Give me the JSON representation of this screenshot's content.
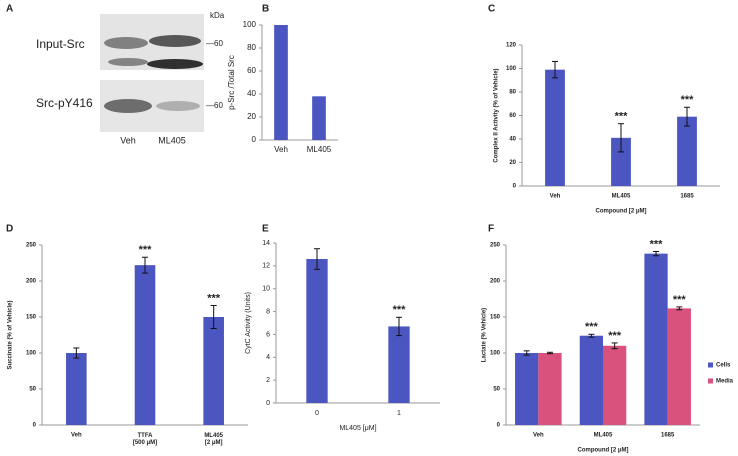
{
  "blot": {
    "panel": "A",
    "kda": "kDa",
    "rows": [
      {
        "name": "Input-Src",
        "marker": "—60"
      },
      {
        "name": "Src-pY416",
        "marker": "—60"
      }
    ],
    "lanes": [
      "Veh",
      "ML405"
    ]
  },
  "chart_data": [
    {
      "type": "bar",
      "panel": "B",
      "y_label": "p-Src /Total Src",
      "categories": [
        "Veh",
        "ML405"
      ],
      "values": [
        100,
        38
      ],
      "color": "#4c56c0",
      "ylim": [
        0,
        100
      ],
      "yticks": [
        0,
        20,
        40,
        60,
        80,
        100
      ]
    },
    {
      "type": "bar",
      "panel": "C",
      "y_label": "Complex II Activity (% of Vehicle)",
      "x_label": "Compound [2 μM]",
      "categories": [
        "Veh",
        "ML405",
        "1685"
      ],
      "values": [
        99,
        41,
        59
      ],
      "errors": [
        7,
        12,
        8
      ],
      "significance": [
        null,
        "***",
        "***"
      ],
      "color": "#4c56c0",
      "ylim": [
        0,
        120
      ],
      "yticks": [
        0,
        20,
        40,
        60,
        80,
        100,
        120
      ]
    },
    {
      "type": "bar",
      "panel": "D",
      "y_label": "Succinate (% of Vehicle)",
      "categories": [
        "Veh",
        "TTFA\n[500 μM]",
        "ML405\n[2 μM]"
      ],
      "values": [
        100,
        222,
        150
      ],
      "errors": [
        7,
        11,
        16
      ],
      "significance": [
        null,
        "***",
        "***"
      ],
      "color": "#4c56c0",
      "ylim": [
        0,
        250
      ],
      "yticks": [
        0,
        50,
        100,
        150,
        200,
        250
      ]
    },
    {
      "type": "bar",
      "panel": "E",
      "y_label": "CytC Activity (Units)",
      "x_label": "ML405 [μM]",
      "categories": [
        "0",
        "1"
      ],
      "values": [
        12.6,
        6.7
      ],
      "errors": [
        0.9,
        0.8
      ],
      "significance": [
        null,
        "***"
      ],
      "color": "#4c56c0",
      "ylim": [
        0,
        14
      ],
      "yticks": [
        0,
        2,
        4,
        6,
        8,
        10,
        12,
        14
      ]
    },
    {
      "type": "grouped_bar",
      "panel": "F",
      "y_label": "Lactate (% Vehicle)",
      "x_label": "Compound [2 μM]",
      "categories": [
        "Veh",
        "ML405",
        "1685"
      ],
      "series": [
        {
          "name": "Cells",
          "color": "#4c56c0",
          "values": [
            100,
            124,
            238
          ],
          "errors": [
            3,
            2,
            3
          ],
          "significance": [
            null,
            "***",
            "***"
          ]
        },
        {
          "name": "Media",
          "color": "#d9527e",
          "values": [
            100,
            110,
            162
          ],
          "errors": [
            1,
            4,
            2
          ],
          "significance": [
            null,
            "***",
            "***"
          ]
        }
      ],
      "ylim": [
        0,
        250
      ],
      "yticks": [
        0,
        50,
        100,
        150,
        200,
        250
      ],
      "legend": "right"
    }
  ]
}
